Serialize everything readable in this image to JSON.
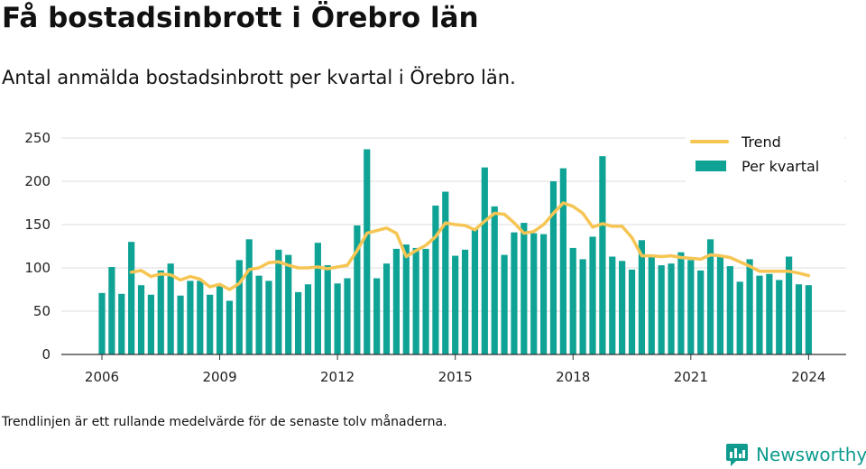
{
  "title": "Få bostadsinbrott i Örebro län",
  "subtitle": "Antal anmälda bostadsinbrott per kvartal i Örebro län.",
  "footnote": "Trendlinjen är ett rullande medelvärde för de senaste tolv månaderna.",
  "brand": "Newsworthy",
  "colors": {
    "bars": "#0fa396",
    "trend": "#f6c553",
    "grid": "#dddddd",
    "brand": "#0f9b8e"
  },
  "chart_data": {
    "type": "bar",
    "grid": true,
    "legend_position": "top-right",
    "ylim": [
      0,
      250
    ],
    "yticks": [
      0,
      50,
      100,
      150,
      200,
      250
    ],
    "xtick_labels": [
      "2006",
      "2009",
      "2012",
      "2015",
      "2018",
      "2021",
      "2024"
    ],
    "categories": [
      "2006 Q1",
      "2006 Q2",
      "2006 Q3",
      "2006 Q4",
      "2007 Q1",
      "2007 Q2",
      "2007 Q3",
      "2007 Q4",
      "2008 Q1",
      "2008 Q2",
      "2008 Q3",
      "2008 Q4",
      "2009 Q1",
      "2009 Q2",
      "2009 Q3",
      "2009 Q4",
      "2010 Q1",
      "2010 Q2",
      "2010 Q3",
      "2010 Q4",
      "2011 Q1",
      "2011 Q2",
      "2011 Q3",
      "2011 Q4",
      "2012 Q1",
      "2012 Q2",
      "2012 Q3",
      "2012 Q4",
      "2013 Q1",
      "2013 Q2",
      "2013 Q3",
      "2013 Q4",
      "2014 Q1",
      "2014 Q2",
      "2014 Q3",
      "2014 Q4",
      "2015 Q1",
      "2015 Q2",
      "2015 Q3",
      "2015 Q4",
      "2016 Q1",
      "2016 Q2",
      "2016 Q3",
      "2016 Q4",
      "2017 Q1",
      "2017 Q2",
      "2017 Q3",
      "2017 Q4",
      "2018 Q1",
      "2018 Q2",
      "2018 Q3",
      "2018 Q4",
      "2019 Q1",
      "2019 Q2",
      "2019 Q3",
      "2019 Q4",
      "2020 Q1",
      "2020 Q2",
      "2020 Q3",
      "2020 Q4",
      "2021 Q1",
      "2021 Q2",
      "2021 Q3",
      "2021 Q4",
      "2022 Q1",
      "2022 Q2",
      "2022 Q3",
      "2022 Q4",
      "2023 Q1",
      "2023 Q2",
      "2023 Q3",
      "2023 Q4",
      "2024 Q1",
      "2024 Q2"
    ],
    "series": [
      {
        "name": "Per kvartal",
        "values": [
          71,
          101,
          70,
          130,
          80,
          69,
          97,
          105,
          68,
          85,
          85,
          69,
          80,
          62,
          109,
          133,
          91,
          85,
          121,
          115,
          72,
          81,
          129,
          103,
          82,
          88,
          149,
          237,
          88,
          105,
          122,
          127,
          123,
          122,
          172,
          188,
          114,
          121,
          145,
          216,
          171,
          115,
          141,
          152,
          140,
          139,
          200,
          215,
          123,
          110,
          136,
          229,
          113,
          108,
          98,
          132,
          113,
          103,
          105,
          118,
          109,
          97,
          133,
          113,
          102,
          84,
          110,
          91,
          93,
          86,
          113,
          81,
          80,
          0
        ]
      },
      {
        "name": "Trend",
        "values": [
          null,
          null,
          null,
          95,
          97,
          90,
          93,
          92,
          86,
          90,
          87,
          78,
          81,
          75,
          82,
          98,
          100,
          106,
          107,
          103,
          100,
          100,
          101,
          99,
          101,
          103,
          120,
          140,
          143,
          146,
          140,
          113,
          120,
          126,
          136,
          152,
          150,
          149,
          144,
          154,
          163,
          162,
          152,
          140,
          142,
          150,
          163,
          175,
          171,
          163,
          147,
          151,
          148,
          148,
          135,
          114,
          114,
          113,
          114,
          112,
          111,
          110,
          115,
          114,
          112,
          107,
          102,
          96,
          96,
          96,
          96,
          94,
          91,
          null
        ]
      }
    ]
  }
}
